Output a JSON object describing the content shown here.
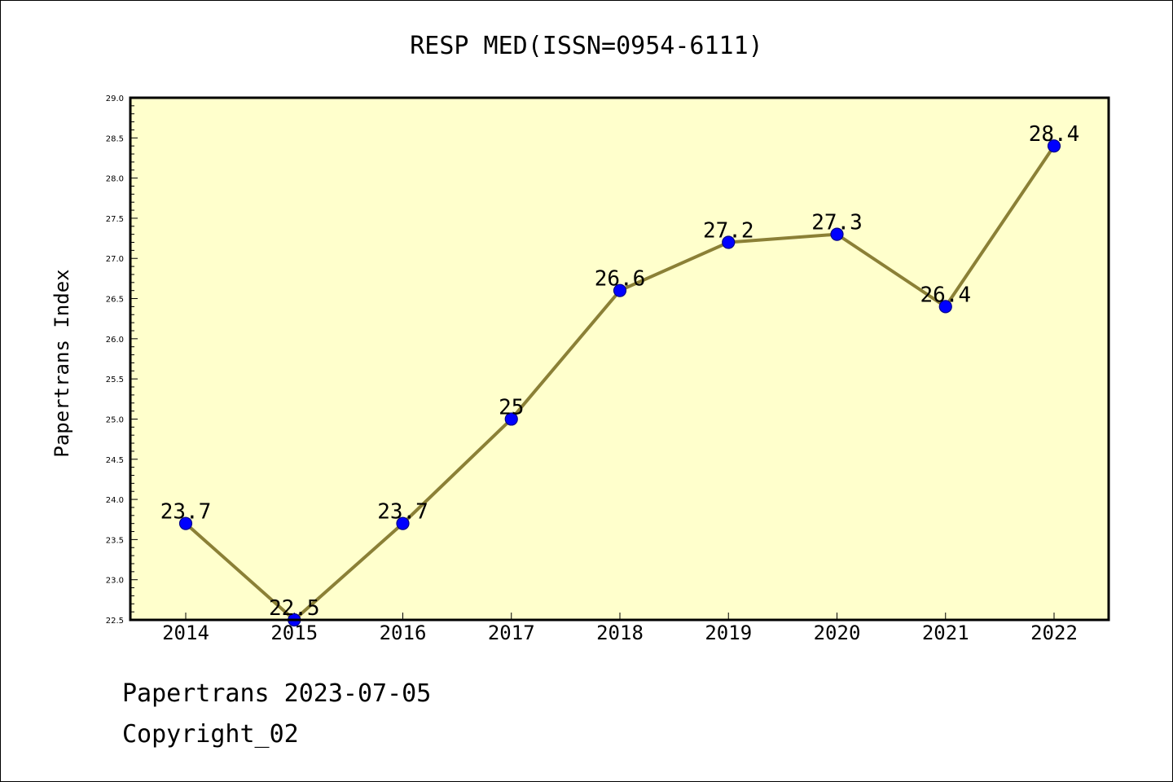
{
  "chart_data": {
    "type": "line",
    "title": "RESP MED(ISSN=0954-6111)",
    "xlabel": "",
    "ylabel": "Papertrans Index",
    "categories": [
      "2014",
      "2015",
      "2016",
      "2017",
      "2018",
      "2019",
      "2020",
      "2021",
      "2022"
    ],
    "values": [
      23.7,
      22.5,
      23.7,
      25.0,
      26.6,
      27.2,
      27.3,
      26.4,
      28.4
    ],
    "data_labels": [
      "23.7",
      "22.5",
      "23.7",
      "25",
      "26.6",
      "27.2",
      "27.3",
      "26.4",
      "28.4"
    ],
    "ylim": [
      22.5,
      29.0
    ],
    "yticks": [
      "22.5",
      "23.0",
      "23.5",
      "24.0",
      "24.5",
      "25.0",
      "25.5",
      "26.0",
      "26.5",
      "27.0",
      "27.5",
      "28.0",
      "28.5",
      "29.0"
    ],
    "grid": false,
    "legend": "none",
    "colors": {
      "plot_background": "#ffffcc",
      "line": "#8b8036",
      "marker_fill": "#0000ff",
      "marker_edge": "#00008b"
    }
  },
  "footer": {
    "date_text": "Papertrans 2023-07-05",
    "copyright_text": "Copyright_02"
  }
}
